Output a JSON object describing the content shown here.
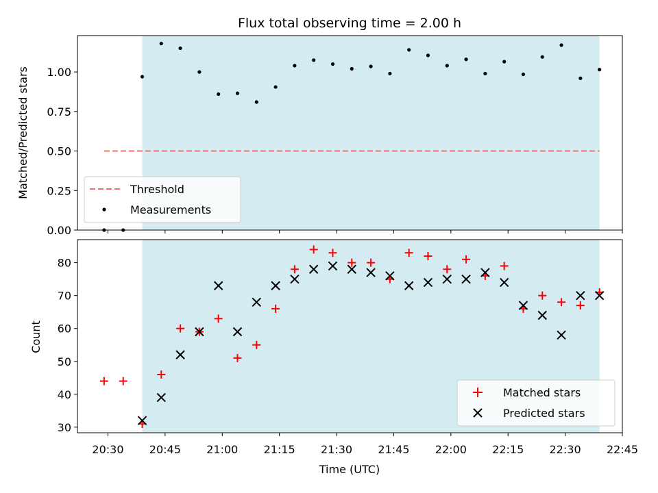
{
  "chart_data": [
    {
      "type": "scatter",
      "title": "Flux total observing time = 2.00 h",
      "ylabel": "Matched/Predicted stars",
      "xlabel": "",
      "xlim": [
        "20:22",
        "22:45"
      ],
      "ylim": [
        0,
        1.23
      ],
      "yticks": [
        "0.00",
        "0.25",
        "0.50",
        "0.75",
        "1.00"
      ],
      "shaded_span": [
        "20:39",
        "22:39"
      ],
      "shade_color": "#d4ebf1",
      "legend_position": "lower-left",
      "threshold": {
        "name": "Threshold",
        "value": 0.5,
        "x_start": "20:29",
        "x_end": "22:39",
        "color": "#f07070"
      },
      "series": [
        {
          "name": "Measurements",
          "color": "#000000",
          "x": [
            "20:29",
            "20:34",
            "20:39",
            "20:44",
            "20:49",
            "20:54",
            "20:59",
            "21:04",
            "21:09",
            "21:14",
            "21:19",
            "21:24",
            "21:29",
            "21:34",
            "21:39",
            "21:44",
            "21:49",
            "21:54",
            "21:59",
            "22:04",
            "22:09",
            "22:14",
            "22:19",
            "22:24",
            "22:29",
            "22:34",
            "22:39"
          ],
          "y": [
            0,
            0,
            0.97,
            1.18,
            1.15,
            1.0,
            0.86,
            0.865,
            0.81,
            0.905,
            1.04,
            1.075,
            1.05,
            1.02,
            1.035,
            0.99,
            1.14,
            1.105,
            1.04,
            1.08,
            0.99,
            1.065,
            0.985,
            1.095,
            1.17,
            0.96,
            1.015
          ]
        }
      ]
    },
    {
      "type": "scatter",
      "title": "",
      "ylabel": "Count",
      "xlabel": "Time (UTC)",
      "xlim": [
        "20:22",
        "22:45"
      ],
      "ylim": [
        28.3,
        87
      ],
      "yticks": [
        "30",
        "40",
        "50",
        "60",
        "70",
        "80"
      ],
      "xticks": [
        "20:30",
        "20:45",
        "21:00",
        "21:15",
        "21:30",
        "21:45",
        "22:00",
        "22:15",
        "22:30",
        "22:45"
      ],
      "shaded_span": [
        "20:39",
        "22:39"
      ],
      "shade_color": "#d4ebf1",
      "legend_position": "lower-right",
      "series": [
        {
          "name": "Matched stars",
          "marker": "+",
          "color": "#ff0000",
          "x": [
            "20:29",
            "20:34",
            "20:39",
            "20:44",
            "20:49",
            "20:54",
            "20:59",
            "21:04",
            "21:09",
            "21:14",
            "21:19",
            "21:24",
            "21:29",
            "21:34",
            "21:39",
            "21:44",
            "21:49",
            "21:54",
            "21:59",
            "22:04",
            "22:09",
            "22:14",
            "22:19",
            "22:24",
            "22:29",
            "22:34",
            "22:39"
          ],
          "y": [
            44,
            44,
            31,
            46,
            60,
            59,
            63,
            51,
            55,
            66,
            78,
            84,
            83,
            80,
            80,
            75,
            83,
            82,
            78,
            81,
            76,
            79,
            66,
            70,
            68,
            67,
            71
          ]
        },
        {
          "name": "Predicted stars",
          "marker": "x",
          "color": "#000000",
          "x": [
            "20:39",
            "20:44",
            "20:49",
            "20:54",
            "20:59",
            "21:04",
            "21:09",
            "21:14",
            "21:19",
            "21:24",
            "21:29",
            "21:34",
            "21:39",
            "21:44",
            "21:49",
            "21:54",
            "21:59",
            "22:04",
            "22:09",
            "22:14",
            "22:19",
            "22:24",
            "22:29",
            "22:34",
            "22:39"
          ],
          "y": [
            32,
            39,
            52,
            59,
            73,
            59,
            68,
            73,
            75,
            78,
            79,
            78,
            77,
            76,
            73,
            74,
            75,
            75,
            77,
            74,
            67,
            64,
            58,
            70,
            70
          ]
        }
      ]
    }
  ]
}
